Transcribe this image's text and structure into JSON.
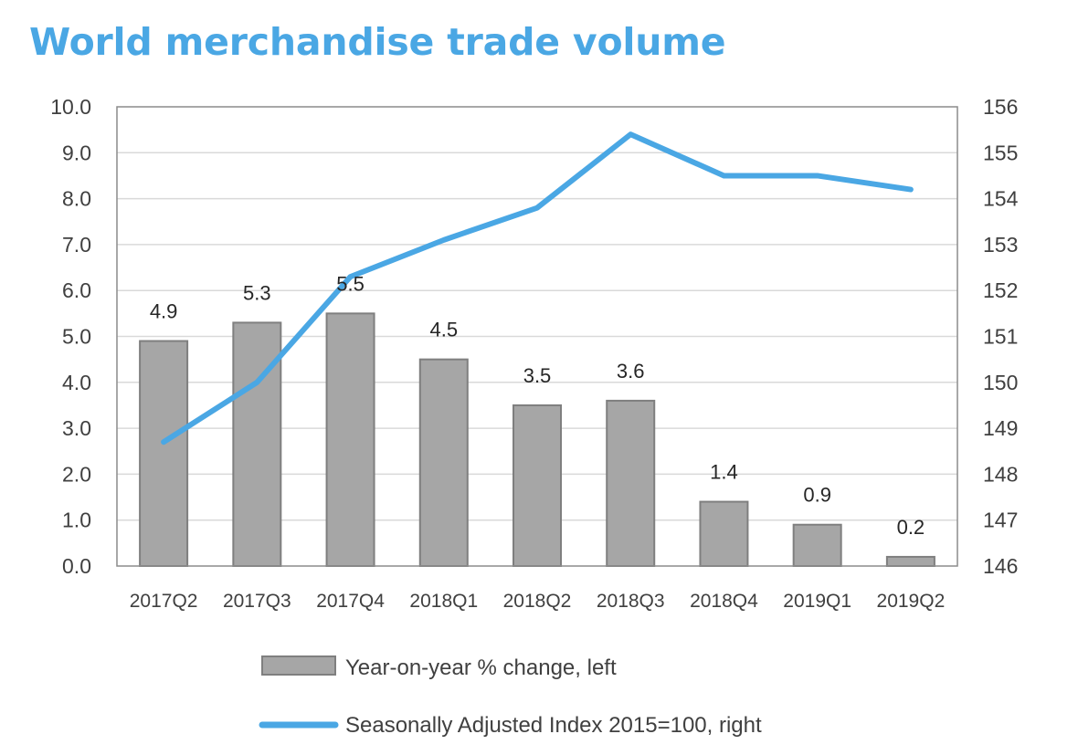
{
  "chart_data": {
    "type": "bar",
    "title": "World merchandise trade volume",
    "categories": [
      "2017Q2",
      "2017Q3",
      "2017Q4",
      "2018Q1",
      "2018Q2",
      "2018Q3",
      "2018Q4",
      "2019Q1",
      "2019Q2"
    ],
    "series": [
      {
        "name": "Year-on-year % change, left",
        "type": "bar",
        "axis": "left",
        "color": "#a6a6a6",
        "values": [
          4.9,
          5.3,
          5.5,
          4.5,
          3.5,
          3.6,
          1.4,
          0.9,
          0.2
        ],
        "data_labels": [
          "4.9",
          "5.3",
          "5.5",
          "4.5",
          "3.5",
          "3.6",
          "1.4",
          "0.9",
          "0.2"
        ]
      },
      {
        "name": "Seasonally Adjusted Index 2015=100, right",
        "type": "line",
        "axis": "right",
        "color": "#4aa7e4",
        "values": [
          148.7,
          150.0,
          152.3,
          153.1,
          153.8,
          155.4,
          154.5,
          154.5,
          154.2
        ]
      }
    ],
    "y_left": {
      "lim": [
        0,
        10
      ],
      "ticks": [
        "0.0",
        "1.0",
        "2.0",
        "3.0",
        "4.0",
        "5.0",
        "6.0",
        "7.0",
        "8.0",
        "9.0",
        "10.0"
      ]
    },
    "y_right": {
      "lim": [
        146,
        156
      ],
      "ticks": [
        "146",
        "147",
        "148",
        "149",
        "150",
        "151",
        "152",
        "153",
        "154",
        "155",
        "156"
      ]
    },
    "grid": true,
    "legend_position": "bottom"
  }
}
